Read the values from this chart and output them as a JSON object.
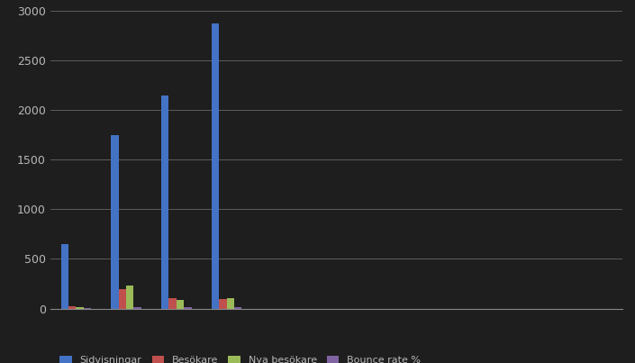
{
  "title": "",
  "series": [
    {
      "name": "Sidvisningar",
      "color": "#4472C4",
      "values": [
        650,
        1750,
        2150,
        2870
      ]
    },
    {
      "name": "Besökare",
      "color": "#C0504D",
      "values": [
        20,
        195,
        105,
        100
      ]
    },
    {
      "name": "Nya besökare",
      "color": "#9BBB59",
      "values": [
        15,
        235,
        90,
        105
      ]
    },
    {
      "name": "Bounce rate %",
      "color": "#8064A2",
      "values": [
        5,
        12,
        12,
        12
      ]
    }
  ],
  "legend_labels": [
    "Sidvisningar",
    "Besökare",
    "Nya besökare",
    "Bounce rate %"
  ],
  "legend_bottom_labels": [
    "Sidvisningar",
    "Besökare",
    "Nya besökare"
  ],
  "ylim": [
    0,
    3000
  ],
  "yticks": [
    0,
    500,
    1000,
    1500,
    2000,
    2500,
    3000
  ],
  "n_groups": 4,
  "background_color": "#1e1e1e",
  "plot_bg_color": "#1e1e1e",
  "grid_color": "#666666",
  "text_color": "#b8b8b8",
  "axis_color": "#888888",
  "bar_width": 0.06,
  "group_width": 0.35,
  "figsize": [
    7.05,
    4.03
  ],
  "dpi": 100
}
